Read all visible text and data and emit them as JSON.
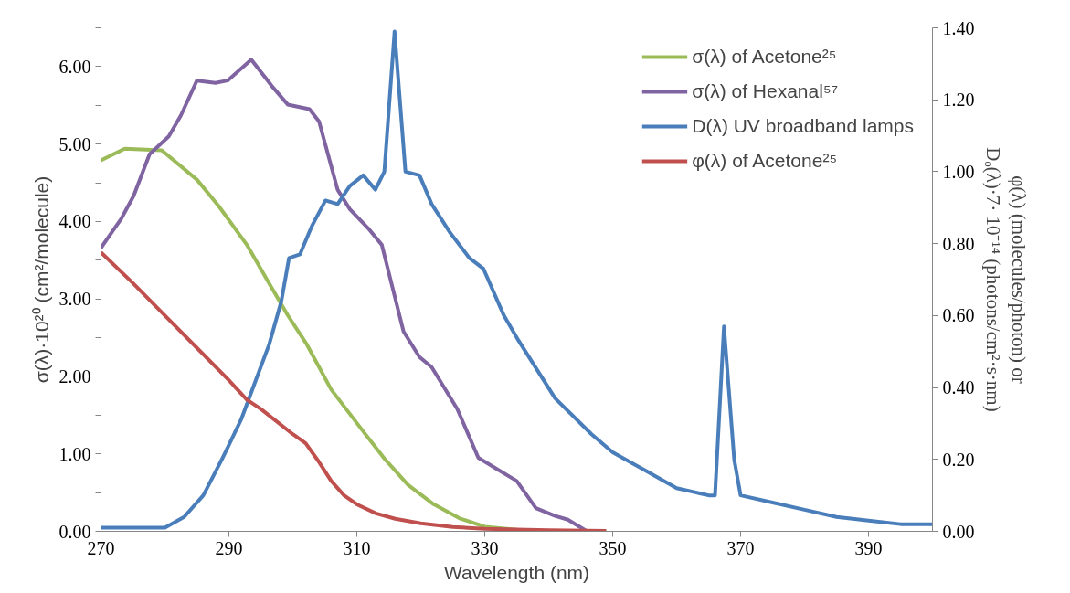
{
  "chart_data": {
    "type": "line",
    "xlabel": "Wavelength (nm)",
    "ylabel": "σ(λ)·10²⁰ (cm²/molecule)",
    "y2label": "φ(λ) (molecules/photon) or\nDₒ(λ)·7· 10⁻¹⁴ (photons/cm²·s·nm)",
    "xlim": [
      270,
      400
    ],
    "xticks": [
      270,
      290,
      310,
      330,
      350,
      370,
      390
    ],
    "ylim": [
      0,
      6.5
    ],
    "yticks": [
      {
        "value": 0,
        "label": "0.00"
      },
      {
        "value": 0.5,
        "label": null
      },
      {
        "value": 1,
        "label": "1.00"
      },
      {
        "value": 1.5,
        "label": null
      },
      {
        "value": 2,
        "label": "2.00"
      },
      {
        "value": 2.5,
        "label": null
      },
      {
        "value": 3,
        "label": "3.00"
      },
      {
        "value": 3.5,
        "label": null
      },
      {
        "value": 4,
        "label": "4.00"
      },
      {
        "value": 4.5,
        "label": null
      },
      {
        "value": 5,
        "label": "5.00"
      },
      {
        "value": 5.5,
        "label": null
      },
      {
        "value": 6,
        "label": "6.00"
      },
      {
        "value": 6.5,
        "label": null
      }
    ],
    "y2lim": [
      0,
      1.4
    ],
    "y2ticks": [
      {
        "value": 0,
        "label": "0.00"
      },
      {
        "value": 0.2,
        "label": "0.20"
      },
      {
        "value": 0.4,
        "label": "0.40"
      },
      {
        "value": 0.6,
        "label": "0.60"
      },
      {
        "value": 0.8,
        "label": "0.80"
      },
      {
        "value": 1.0,
        "label": "1.00"
      },
      {
        "value": 1.2,
        "label": "1.20"
      },
      {
        "value": 1.4,
        "label": "1.40"
      }
    ],
    "legend": "top right",
    "marker": "none",
    "line_style": "solid",
    "series": [
      {
        "name": "σ(λ) of Acetone²⁵",
        "color": "#9bbb59",
        "x": [
          270,
          273.7,
          279.5,
          285,
          288.4,
          292.8,
          296.3,
          299.2,
          302.2,
          306,
          311,
          314.3,
          318,
          322,
          326,
          330,
          335,
          340
        ],
        "values": [
          4.79,
          4.94,
          4.92,
          4.54,
          4.2,
          3.7,
          3.2,
          2.79,
          2.41,
          1.83,
          1.29,
          0.94,
          0.6,
          0.35,
          0.17,
          0.06,
          0.02,
          0
        ]
      },
      {
        "name": "σ(λ) of Hexanal⁵⁷",
        "color": "#8064a2",
        "x": [
          270,
          273.2,
          275.1,
          277.6,
          280.6,
          282.5,
          285,
          287.9,
          289.8,
          293.5,
          296.7,
          299.2,
          302.6,
          304.1,
          307,
          308.9,
          311.8,
          313.9,
          317.3,
          319.8,
          321.7,
          325.7,
          329,
          332,
          335,
          338,
          341,
          343,
          346
        ],
        "values": [
          3.66,
          4.04,
          4.33,
          4.87,
          5.1,
          5.37,
          5.82,
          5.79,
          5.82,
          6.09,
          5.75,
          5.51,
          5.45,
          5.29,
          4.41,
          4.16,
          3.91,
          3.7,
          2.58,
          2.25,
          2.12,
          1.58,
          0.95,
          0.8,
          0.65,
          0.3,
          0.2,
          0.15,
          0
        ]
      },
      {
        "name": "D(λ) UV broadband lamps",
        "color": "#4a7ebb",
        "axis": "y2",
        "x": [
          270,
          280,
          283,
          286,
          288.9,
          291.9,
          294.2,
          296.3,
          298.2,
          299.4,
          301.1,
          303,
          305.1,
          307,
          308.9,
          311,
          312.9,
          314.3,
          315.9,
          317.6,
          319.8,
          321.7,
          324.6,
          327.6,
          329.8,
          333,
          335.3,
          341,
          346.7,
          350,
          355,
          360,
          365,
          366,
          367.4,
          369,
          370,
          375,
          380,
          385,
          390,
          395,
          400
        ],
        "values": [
          0.01,
          0.01,
          0.04,
          0.1,
          0.2,
          0.31,
          0.42,
          0.52,
          0.64,
          0.76,
          0.77,
          0.85,
          0.92,
          0.91,
          0.96,
          0.99,
          0.95,
          1.0,
          1.39,
          1.0,
          0.99,
          0.91,
          0.83,
          0.76,
          0.73,
          0.6,
          0.53,
          0.37,
          0.27,
          0.22,
          0.17,
          0.12,
          0.1,
          0.1,
          0.57,
          0.2,
          0.1,
          0.08,
          0.06,
          0.04,
          0.03,
          0.02,
          0.02
        ]
      },
      {
        "name": "φ(λ) of Acetone²⁵",
        "color": "#c0504d",
        "axis": "y2",
        "x": [
          270,
          275,
          280,
          285,
          290,
          292.8,
          295,
          300,
          302,
          304,
          306,
          308,
          310,
          313,
          316,
          320,
          325,
          330,
          340,
          349
        ],
        "values": [
          0.776,
          0.69,
          0.6,
          0.51,
          0.42,
          0.366,
          0.34,
          0.27,
          0.245,
          0.195,
          0.14,
          0.1,
          0.075,
          0.05,
          0.035,
          0.022,
          0.012,
          0.007,
          0.003,
          0.001
        ]
      }
    ]
  }
}
